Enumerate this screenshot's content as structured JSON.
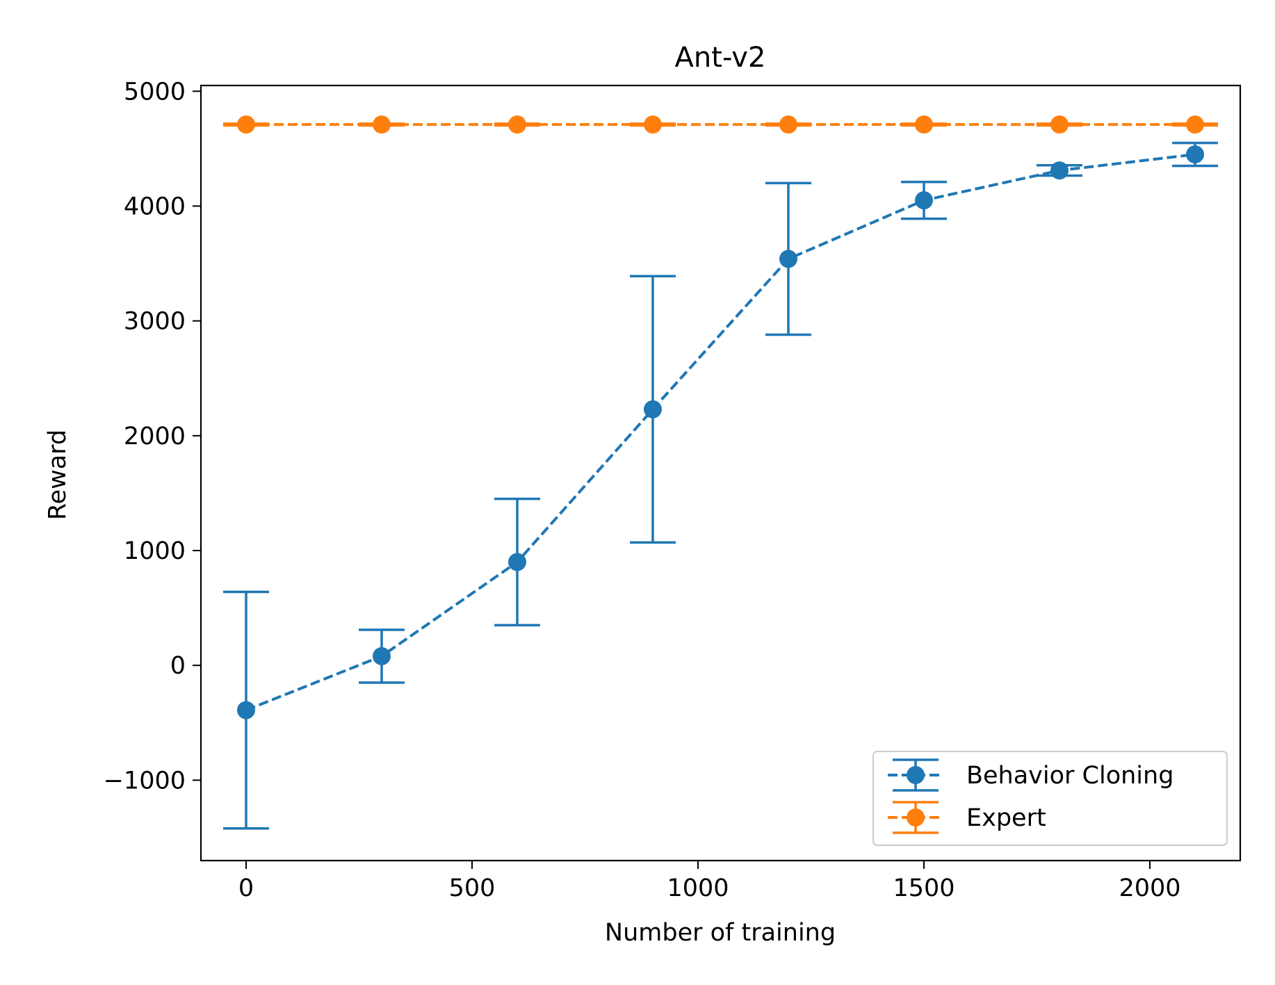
{
  "chart_data": {
    "type": "line",
    "title": "Ant-v2",
    "xlabel": "Number of training",
    "ylabel": "Reward",
    "xlim": [
      -100,
      2200
    ],
    "ylim": [
      -1700,
      5050
    ],
    "xticks": [
      0,
      500,
      1000,
      1500,
      2000
    ],
    "yticks": [
      -1000,
      0,
      1000,
      2000,
      3000,
      4000,
      5000
    ],
    "xtick_labels": [
      "0",
      "500",
      "1000",
      "1500",
      "2000"
    ],
    "ytick_labels": [
      "−1000",
      "0",
      "1000",
      "2000",
      "3000",
      "4000",
      "5000"
    ],
    "grid": false,
    "legend_position": "lower right",
    "x": [
      0,
      300,
      600,
      900,
      1200,
      1500,
      1800,
      2100
    ],
    "series": [
      {
        "name": "Behavior Cloning",
        "color": "#1f77b4",
        "linestyle": "dashed",
        "marker": "circle",
        "values": [
          -390,
          80,
          900,
          2230,
          3540,
          4050,
          4310,
          4450
        ],
        "error": [
          1030,
          230,
          550,
          1160,
          660,
          160,
          45,
          100
        ]
      },
      {
        "name": "Expert",
        "color": "#ff7f0e",
        "linestyle": "dashed",
        "marker": "circle",
        "values": [
          4710,
          4710,
          4710,
          4710,
          4710,
          4710,
          4710,
          4710
        ],
        "error": [
          8,
          8,
          8,
          8,
          8,
          8,
          8,
          8
        ]
      }
    ]
  }
}
